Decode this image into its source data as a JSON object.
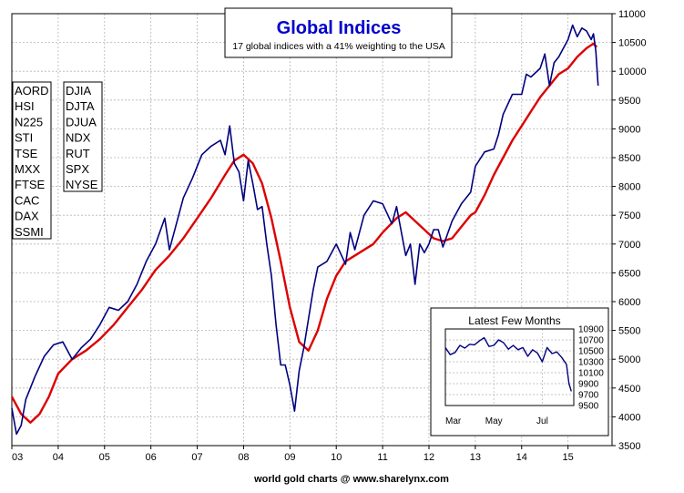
{
  "chart_data": [
    {
      "type": "line",
      "title": "Global Indices",
      "subtitle": "17 global indices with a 41% weighting to the USA",
      "footer": "world gold charts @ www.sharelynx.com",
      "legend_left": [
        "AORD",
        "HSI",
        "N225",
        "STI",
        "TSE",
        "MXX",
        "FTSE",
        "CAC",
        "DAX",
        "SSMI"
      ],
      "legend_right": [
        "DJIA",
        "DJTA",
        "DJUA",
        "NDX",
        "RUT",
        "SPX",
        "NYSE"
      ],
      "x_tick_labels": [
        "03",
        "04",
        "05",
        "06",
        "07",
        "08",
        "09",
        "10",
        "11",
        "12",
        "13",
        "14",
        "15"
      ],
      "x_ticks": [
        2003,
        2004,
        2005,
        2006,
        2007,
        2008,
        2009,
        2010,
        2011,
        2012,
        2013,
        2014,
        2015
      ],
      "xlim": [
        2003.0,
        2015.95
      ],
      "ylim": [
        3500,
        11000
      ],
      "y_ticks": [
        3500,
        4000,
        4500,
        5000,
        5500,
        6000,
        6500,
        7000,
        7500,
        8000,
        8500,
        9000,
        9500,
        10000,
        10500,
        11000
      ],
      "grid": true,
      "colors": {
        "index": "#000080",
        "moving_average": "#dd0000",
        "title": "#0000cc"
      },
      "series": [
        {
          "role": "index",
          "x": [
            2003.0,
            2003.1,
            2003.2,
            2003.3,
            2003.5,
            2003.7,
            2003.9,
            2004.1,
            2004.3,
            2004.5,
            2004.7,
            2004.9,
            2005.1,
            2005.3,
            2005.5,
            2005.7,
            2005.9,
            2006.1,
            2006.3,
            2006.4,
            2006.5,
            2006.7,
            2006.9,
            2007.1,
            2007.3,
            2007.5,
            2007.6,
            2007.7,
            2007.8,
            2007.9,
            2008.0,
            2008.1,
            2008.2,
            2008.3,
            2008.4,
            2008.5,
            2008.6,
            2008.7,
            2008.8,
            2008.9,
            2009.0,
            2009.1,
            2009.2,
            2009.3,
            2009.4,
            2009.5,
            2009.6,
            2009.8,
            2010.0,
            2010.2,
            2010.3,
            2010.4,
            2010.6,
            2010.8,
            2011.0,
            2011.2,
            2011.3,
            2011.5,
            2011.6,
            2011.7,
            2011.8,
            2011.9,
            2012.0,
            2012.1,
            2012.2,
            2012.3,
            2012.5,
            2012.7,
            2012.9,
            2013.0,
            2013.2,
            2013.4,
            2013.5,
            2013.6,
            2013.8,
            2014.0,
            2014.1,
            2014.2,
            2014.4,
            2014.5,
            2014.6,
            2014.7,
            2014.8,
            2014.9,
            2015.0,
            2015.1,
            2015.2,
            2015.3,
            2015.4,
            2015.5,
            2015.55,
            2015.6,
            2015.65
          ],
          "y": [
            4150,
            3700,
            3850,
            4300,
            4700,
            5050,
            5250,
            5300,
            5000,
            5200,
            5350,
            5600,
            5900,
            5850,
            6000,
            6300,
            6700,
            7000,
            7450,
            6900,
            7200,
            7800,
            8150,
            8550,
            8700,
            8800,
            8550,
            9050,
            8400,
            8250,
            7750,
            8450,
            8050,
            7600,
            7650,
            7000,
            6450,
            5600,
            4900,
            4900,
            4550,
            4100,
            4800,
            5200,
            5700,
            6200,
            6600,
            6700,
            7000,
            6650,
            7200,
            6900,
            7500,
            7750,
            7700,
            7350,
            7650,
            6800,
            7000,
            6300,
            7000,
            6850,
            7000,
            7250,
            7250,
            6950,
            7400,
            7700,
            7900,
            8350,
            8600,
            8650,
            8900,
            9250,
            9600,
            9600,
            9950,
            9900,
            10050,
            10300,
            9750,
            10150,
            10250,
            10400,
            10550,
            10800,
            10600,
            10750,
            10700,
            10550,
            10650,
            10350,
            9750
          ]
        },
        {
          "role": "moving_average",
          "x": [
            2003.0,
            2003.2,
            2003.4,
            2003.6,
            2003.8,
            2004.0,
            2004.3,
            2004.6,
            2004.9,
            2005.2,
            2005.5,
            2005.8,
            2006.1,
            2006.4,
            2006.7,
            2007.0,
            2007.3,
            2007.6,
            2007.8,
            2008.0,
            2008.2,
            2008.4,
            2008.6,
            2008.8,
            2009.0,
            2009.2,
            2009.4,
            2009.6,
            2009.8,
            2010.0,
            2010.2,
            2010.5,
            2010.8,
            2011.0,
            2011.3,
            2011.5,
            2011.7,
            2011.9,
            2012.1,
            2012.3,
            2012.5,
            2012.7,
            2012.9,
            2013.0,
            2013.2,
            2013.4,
            2013.6,
            2013.8,
            2014.0,
            2014.2,
            2014.4,
            2014.6,
            2014.8,
            2015.0,
            2015.2,
            2015.4,
            2015.55,
            2015.62
          ],
          "y": [
            4350,
            4050,
            3900,
            4050,
            4350,
            4750,
            5000,
            5150,
            5350,
            5600,
            5900,
            6200,
            6550,
            6800,
            7100,
            7450,
            7800,
            8200,
            8450,
            8550,
            8400,
            8050,
            7450,
            6700,
            5900,
            5300,
            5150,
            5500,
            6050,
            6450,
            6700,
            6850,
            7000,
            7200,
            7450,
            7550,
            7400,
            7250,
            7100,
            7050,
            7100,
            7300,
            7500,
            7550,
            7850,
            8200,
            8500,
            8800,
            9050,
            9300,
            9550,
            9750,
            9950,
            10050,
            10250,
            10400,
            10480,
            10420
          ]
        }
      ]
    },
    {
      "type": "line",
      "title": "Latest Few Months",
      "x_tick_labels": [
        "Mar",
        "May",
        "Jul"
      ],
      "x_ticks": [
        0,
        2,
        4
      ],
      "xlim": [
        0,
        5.3
      ],
      "ylim": [
        9500,
        10900
      ],
      "y_ticks": [
        9500,
        9700,
        9900,
        10100,
        10300,
        10500,
        10700,
        10900
      ],
      "grid": true,
      "series": [
        {
          "role": "index",
          "x": [
            0,
            0.2,
            0.4,
            0.6,
            0.8,
            1.0,
            1.2,
            1.4,
            1.6,
            1.8,
            2.0,
            2.2,
            2.4,
            2.6,
            2.8,
            3.0,
            3.2,
            3.4,
            3.6,
            3.8,
            4.0,
            4.2,
            4.4,
            4.6,
            4.8,
            5.0,
            5.1,
            5.2
          ],
          "y": [
            10560,
            10430,
            10470,
            10600,
            10550,
            10620,
            10610,
            10680,
            10740,
            10580,
            10600,
            10700,
            10650,
            10530,
            10600,
            10520,
            10560,
            10400,
            10520,
            10460,
            10300,
            10560,
            10450,
            10480,
            10380,
            10250,
            9900,
            9760
          ]
        }
      ]
    }
  ]
}
